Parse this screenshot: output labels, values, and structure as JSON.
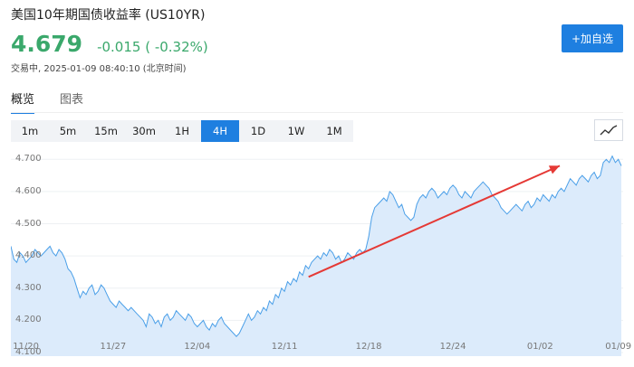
{
  "header": {
    "title": "美国10年期国债收益率 (US10YR)",
    "price": "4.679",
    "change": "-0.015 ( -0.32%)",
    "status": "交易中, 2025-01-09 08:40:10 (北京时间)",
    "add_label": "+加自选"
  },
  "tabs": [
    {
      "label": "概览",
      "active": true
    },
    {
      "label": "图表",
      "active": false
    }
  ],
  "periods": [
    "1m",
    "5m",
    "15m",
    "30m",
    "1H",
    "4H",
    "1D",
    "1W",
    "1M"
  ],
  "active_period": "4H",
  "icons": {
    "chart_toggle": "line-chart-icon"
  },
  "colors": {
    "accent": "#1e7fe0",
    "up_green": "#3aa86b",
    "line": "#4a9fe8",
    "fill": "#dcebfb",
    "annotation": "#e53935"
  },
  "chart_data": {
    "type": "area",
    "title": "",
    "xlabel": "",
    "ylabel": "",
    "ylim": [
      4.1,
      4.74
    ],
    "ytick_labels": [
      "4.700",
      "4.600",
      "4.500",
      "4.400",
      "4.300",
      "4.200",
      "4.100"
    ],
    "yticks": [
      4.7,
      4.6,
      4.5,
      4.4,
      4.3,
      4.2,
      4.1
    ],
    "xtick_labels": [
      "11/20",
      "11/27",
      "12/04",
      "12/11",
      "12/18",
      "12/24",
      "01/02",
      "01/09"
    ],
    "xtick_index": [
      5,
      34,
      62,
      91,
      119,
      147,
      176,
      202
    ],
    "values": [
      4.43,
      4.39,
      4.38,
      4.41,
      4.4,
      4.38,
      4.39,
      4.4,
      4.42,
      4.41,
      4.4,
      4.41,
      4.42,
      4.43,
      4.41,
      4.4,
      4.42,
      4.41,
      4.39,
      4.36,
      4.35,
      4.33,
      4.3,
      4.27,
      4.29,
      4.28,
      4.3,
      4.31,
      4.28,
      4.29,
      4.31,
      4.3,
      4.28,
      4.26,
      4.25,
      4.24,
      4.26,
      4.25,
      4.24,
      4.23,
      4.24,
      4.23,
      4.22,
      4.21,
      4.2,
      4.18,
      4.22,
      4.21,
      4.19,
      4.2,
      4.18,
      4.21,
      4.22,
      4.2,
      4.21,
      4.23,
      4.22,
      4.21,
      4.2,
      4.22,
      4.21,
      4.19,
      4.18,
      4.19,
      4.2,
      4.18,
      4.17,
      4.19,
      4.18,
      4.2,
      4.21,
      4.19,
      4.18,
      4.17,
      4.16,
      4.15,
      4.16,
      4.18,
      4.2,
      4.22,
      4.2,
      4.21,
      4.23,
      4.22,
      4.24,
      4.23,
      4.26,
      4.25,
      4.28,
      4.27,
      4.3,
      4.29,
      4.32,
      4.31,
      4.33,
      4.32,
      4.35,
      4.34,
      4.37,
      4.36,
      4.38,
      4.39,
      4.4,
      4.39,
      4.41,
      4.4,
      4.42,
      4.41,
      4.39,
      4.4,
      4.38,
      4.39,
      4.41,
      4.4,
      4.39,
      4.41,
      4.42,
      4.41,
      4.42,
      4.46,
      4.52,
      4.55,
      4.56,
      4.57,
      4.58,
      4.57,
      4.6,
      4.59,
      4.57,
      4.55,
      4.56,
      4.53,
      4.52,
      4.51,
      4.52,
      4.56,
      4.58,
      4.59,
      4.58,
      4.6,
      4.61,
      4.6,
      4.58,
      4.59,
      4.6,
      4.59,
      4.61,
      4.62,
      4.61,
      4.59,
      4.58,
      4.6,
      4.59,
      4.58,
      4.6,
      4.61,
      4.62,
      4.63,
      4.62,
      4.61,
      4.59,
      4.58,
      4.57,
      4.55,
      4.54,
      4.53,
      4.54,
      4.55,
      4.56,
      4.55,
      4.54,
      4.56,
      4.57,
      4.55,
      4.56,
      4.58,
      4.57,
      4.59,
      4.58,
      4.57,
      4.59,
      4.58,
      4.6,
      4.61,
      4.6,
      4.62,
      4.64,
      4.63,
      4.62,
      4.64,
      4.65,
      4.64,
      4.63,
      4.65,
      4.66,
      4.64,
      4.65,
      4.69,
      4.7,
      4.69,
      4.71,
      4.69,
      4.7,
      4.68
    ],
    "arrow_from_index": 99,
    "arrow_to_index": 205,
    "arrow_from_value": 4.335,
    "arrow_to_value": 4.68,
    "grid": true,
    "legend": "none"
  }
}
